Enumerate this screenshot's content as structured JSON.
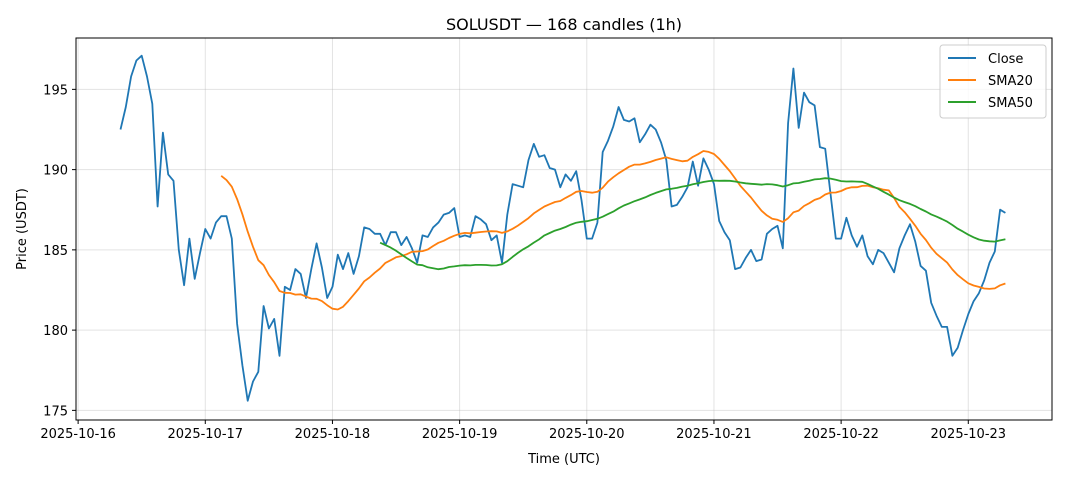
{
  "chart_data": {
    "type": "line",
    "title": "SOLUSDT — 168 candles (1h)",
    "xlabel": "Time (UTC)",
    "ylabel": "Price (USDT)",
    "start_time": "2025-10-16 08:00",
    "interval_hours": 1,
    "x_range_hours_from_2025-10-16": [
      -0.4,
      183.8
    ],
    "ylim": [
      174.4,
      198.2
    ],
    "grid": true,
    "legend_position": "top-right",
    "x_ticks": [
      {
        "hours": 0,
        "label": "2025-10-16"
      },
      {
        "hours": 24,
        "label": "2025-10-17"
      },
      {
        "hours": 48,
        "label": "2025-10-18"
      },
      {
        "hours": 72,
        "label": "2025-10-19"
      },
      {
        "hours": 96,
        "label": "2025-10-20"
      },
      {
        "hours": 120,
        "label": "2025-10-21"
      },
      {
        "hours": 144,
        "label": "2025-10-22"
      },
      {
        "hours": 168,
        "label": "2025-10-23"
      }
    ],
    "y_ticks": [
      {
        "value": 175,
        "label": "175"
      },
      {
        "value": 180,
        "label": "180"
      },
      {
        "value": 185,
        "label": "185"
      },
      {
        "value": 190,
        "label": "190"
      },
      {
        "value": 195,
        "label": "195"
      }
    ],
    "series": [
      {
        "name": "Close",
        "color": "#1f77b4",
        "kind": "close",
        "values": [
          192.5,
          193.9,
          195.8,
          196.8,
          197.1,
          195.8,
          194.1,
          187.7,
          192.3,
          189.7,
          189.3,
          185.0,
          182.8,
          185.7,
          183.2,
          184.8,
          186.3,
          185.7,
          186.7,
          187.1,
          187.1,
          185.7,
          180.4,
          177.8,
          175.6,
          176.8,
          177.4,
          181.5,
          180.1,
          180.7,
          178.4,
          182.7,
          182.5,
          183.8,
          183.5,
          182.0,
          183.8,
          185.4,
          183.9,
          182.0,
          182.7,
          184.7,
          183.8,
          184.8,
          183.5,
          184.6,
          186.4,
          186.3,
          186.0,
          186.0,
          185.3,
          186.1,
          186.1,
          185.3,
          185.8,
          185.1,
          184.2,
          185.9,
          185.8,
          186.4,
          186.7,
          187.2,
          187.3,
          187.6,
          185.8,
          185.9,
          185.8,
          187.1,
          186.9,
          186.6,
          185.6,
          185.9,
          184.2,
          187.2,
          189.1,
          189.0,
          188.9,
          190.6,
          191.6,
          190.8,
          190.9,
          190.1,
          190.0,
          188.9,
          189.7,
          189.3,
          189.9,
          188.1,
          185.7,
          185.7,
          186.7,
          191.1,
          191.8,
          192.7,
          193.9,
          193.1,
          193.0,
          193.2,
          191.7,
          192.2,
          192.8,
          192.5,
          191.7,
          190.6,
          187.7,
          187.8,
          188.3,
          188.9,
          190.5,
          189.0,
          190.7,
          190.0,
          189.1,
          186.8,
          186.1,
          185.6,
          183.8,
          183.9,
          184.5,
          185.0,
          184.3,
          184.4,
          186.0,
          186.3,
          186.5,
          185.1,
          192.9,
          196.3,
          192.6,
          194.8,
          194.2,
          194.0,
          191.4,
          191.3,
          188.5,
          185.7,
          185.7,
          187.0,
          185.9,
          185.2,
          185.9,
          184.6,
          184.1,
          185.0,
          184.8,
          184.2,
          183.6,
          185.1,
          185.9,
          186.6,
          185.5,
          184.0,
          183.7,
          181.7,
          180.9,
          180.2,
          180.2,
          178.4,
          178.9,
          180.0,
          181.0,
          181.8,
          182.3,
          183.1,
          184.2,
          184.9,
          187.5,
          187.3
        ]
      },
      {
        "name": "SMA20",
        "color": "#ff7f0e",
        "kind": "sma",
        "window": 20
      },
      {
        "name": "SMA50",
        "color": "#2ca02c",
        "kind": "sma",
        "window": 50
      }
    ]
  }
}
